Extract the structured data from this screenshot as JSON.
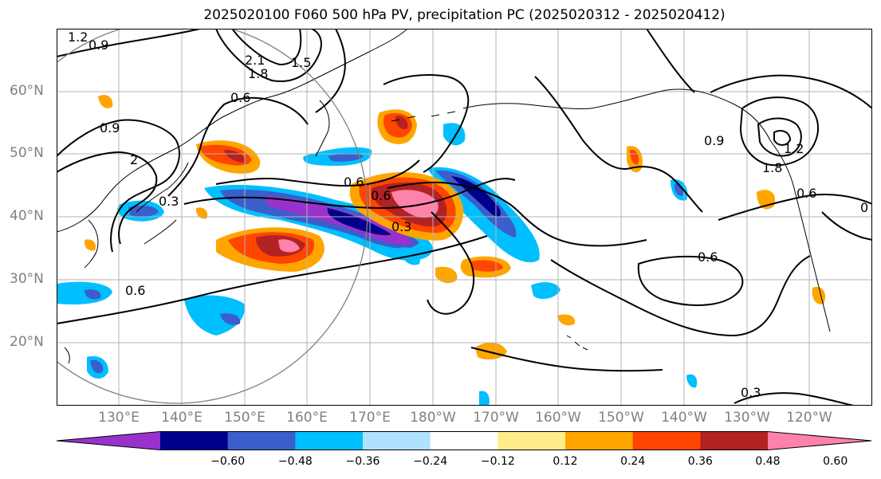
{
  "title": "2025020100 F060 500 hPa PV, precipitation PC (2025020312 - 2025020412)",
  "map": {
    "type": "filled-contour-map",
    "lat_labels": [
      "60°N",
      "50°N",
      "40°N",
      "30°N",
      "20°N"
    ],
    "lon_labels": [
      "130°E",
      "140°E",
      "150°E",
      "160°E",
      "170°E",
      "180°W",
      "170°W",
      "160°W",
      "150°W",
      "140°W",
      "130°W",
      "120°W"
    ],
    "contour_labels": [
      "1.2",
      "0.9",
      "0.6",
      "2",
      "0.3",
      "0.9",
      "0.6",
      "0.3",
      "0.6",
      "0.6",
      "1.2",
      "0.9",
      "1.8",
      "0.6",
      "0",
      "0.3",
      "0.6",
      "1.5",
      "2.1",
      "1.8"
    ],
    "grid": true
  },
  "colorbar": {
    "ticks": [
      "−0.60",
      "−0.48",
      "−0.36",
      "−0.24",
      "−0.12",
      "0.12",
      "0.24",
      "0.36",
      "0.48",
      "0.60"
    ],
    "colors": [
      "#9932CC",
      "#00008B",
      "#3A5FCD",
      "#00BFFF",
      "#B0E2FF",
      "#FFFFFF",
      "#FFEC8B",
      "#FFA500",
      "#FF4500",
      "#B22222",
      "#FF82AB"
    ]
  }
}
